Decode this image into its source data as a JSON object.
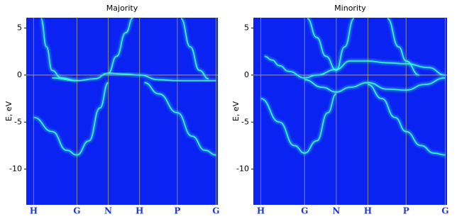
{
  "chart_data": [
    {
      "type": "line",
      "title": "Majority",
      "ylabel": "E, eV",
      "color": "#3cf5d8",
      "background": "#0a22f2",
      "hline": 0,
      "xlim": [
        -0.04,
        1.0
      ],
      "xticks": [
        {
          "value": 0,
          "label": "H"
        },
        {
          "value": 0.235,
          "label": "G"
        },
        {
          "value": 0.405,
          "label": "N"
        },
        {
          "value": 0.575,
          "label": "H"
        },
        {
          "value": 0.78,
          "label": "P"
        },
        {
          "value": 0.99,
          "label": "G"
        }
      ],
      "ylim": [
        -13.8,
        6.1
      ],
      "yticks": [
        5,
        0,
        -5,
        -10
      ],
      "series": [
        {
          "x": [
            0.04,
            0.07,
            0.1,
            0.15,
            0.235
          ],
          "values": [
            6,
            3,
            0.5,
            -0.3,
            -0.6
          ]
        },
        {
          "x": [
            0.1,
            0.235,
            0.33,
            0.405,
            0.5,
            0.575,
            0.68,
            0.78,
            0.9,
            0.99
          ],
          "values": [
            -0.3,
            -0.6,
            -0.4,
            0.2,
            0.1,
            0,
            -0.5,
            -0.6,
            -0.6,
            -0.6
          ]
        },
        {
          "x": [
            0.405,
            0.45,
            0.5,
            0.54
          ],
          "values": [
            0.2,
            2,
            4.5,
            6.1
          ]
        },
        {
          "x": [
            0.8,
            0.85,
            0.9,
            0.95
          ],
          "values": [
            6,
            3,
            0.5,
            -0.4
          ]
        },
        {
          "x": [
            0,
            0.1,
            0.18,
            0.235,
            0.3,
            0.36,
            0.405
          ],
          "values": [
            -4.5,
            -6,
            -8,
            -8.5,
            -7,
            -3.5,
            -0.8
          ]
        },
        {
          "x": [
            0.6,
            0.68,
            0.78,
            0.86,
            0.93,
            0.99
          ],
          "values": [
            -0.8,
            -2,
            -4,
            -6.5,
            -8,
            -8.5
          ]
        }
      ]
    },
    {
      "type": "line",
      "title": "Minority",
      "ylabel": "E, eV",
      "color": "#3cf5d8",
      "background": "#0a22f2",
      "hline": 0,
      "xlim": [
        -0.04,
        1.0
      ],
      "xticks": [
        {
          "value": 0,
          "label": "H"
        },
        {
          "value": 0.235,
          "label": "G"
        },
        {
          "value": 0.405,
          "label": "N"
        },
        {
          "value": 0.575,
          "label": "H"
        },
        {
          "value": 0.78,
          "label": "P"
        },
        {
          "value": 0.99,
          "label": "G"
        }
      ],
      "ylim": [
        -13.8,
        6.1
      ],
      "yticks": [
        5,
        0,
        -5,
        -10
      ],
      "series": [
        {
          "x": [
            0.02,
            0.06,
            0.1,
            0.15,
            0.235,
            0.3,
            0.405,
            0.48,
            0.575,
            0.68,
            0.78,
            0.9,
            0.99
          ],
          "values": [
            2,
            1.6,
            1,
            0.4,
            -0.3,
            0,
            0.6,
            1.5,
            1.5,
            1.3,
            1.2,
            0.8,
            0
          ]
        },
        {
          "x": [
            0.25,
            0.3,
            0.35,
            0.405
          ],
          "values": [
            6,
            4,
            2,
            0.5
          ]
        },
        {
          "x": [
            0.405,
            0.45,
            0.5
          ],
          "values": [
            0.5,
            3,
            6
          ]
        },
        {
          "x": [
            0.235,
            0.33,
            0.405,
            0.48,
            0.575,
            0.68,
            0.78,
            0.88,
            0.99
          ],
          "values": [
            -0.5,
            -1.3,
            -1.8,
            -1.3,
            -0.8,
            -1.5,
            -1.6,
            -1,
            -0.3
          ]
        },
        {
          "x": [
            0,
            0.1,
            0.18,
            0.235,
            0.3,
            0.36,
            0.405
          ],
          "values": [
            -2.5,
            -5,
            -7.5,
            -8.3,
            -7,
            -4,
            -2
          ]
        },
        {
          "x": [
            0.575,
            0.65,
            0.72,
            0.78,
            0.86,
            0.93,
            0.99
          ],
          "values": [
            -1,
            -2.5,
            -4.5,
            -6,
            -7.5,
            -8.3,
            -8.5
          ]
        },
        {
          "x": [
            0.68,
            0.74,
            0.78,
            0.85
          ],
          "values": [
            6,
            3,
            1.5,
            0
          ]
        }
      ]
    }
  ]
}
